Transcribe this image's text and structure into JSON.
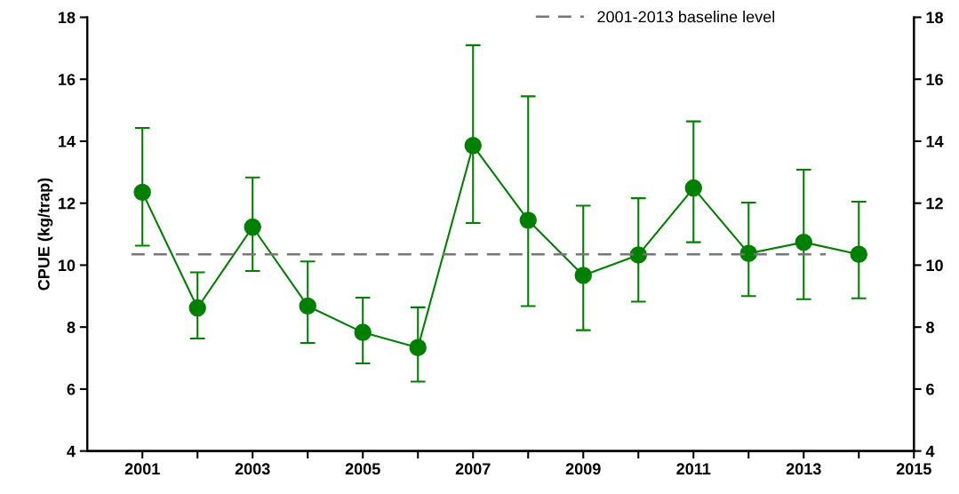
{
  "chart_data": {
    "type": "line",
    "ylabel": "CPUE (kg/trap)",
    "xlim": [
      2000,
      2015
    ],
    "xticks": [
      2001,
      {
        "value": 2002,
        "label": null
      },
      2003,
      {
        "value": 2004,
        "label": null
      },
      2005,
      {
        "value": 2006,
        "label": null
      },
      2007,
      {
        "value": 2008,
        "label": null
      },
      2009,
      {
        "value": 2010,
        "label": null
      },
      2011,
      {
        "value": 2012,
        "label": null
      },
      2013,
      {
        "value": 2014,
        "label": null
      },
      2015
    ],
    "ylim": [
      4,
      18
    ],
    "yticks": [
      4,
      6,
      8,
      10,
      12,
      14,
      16,
      18
    ],
    "y2lim": [
      4,
      18
    ],
    "y2ticks": [
      4,
      6,
      8,
      10,
      12,
      14,
      16,
      18
    ],
    "grid": false,
    "legend": "top right",
    "series": [
      {
        "color": "#008000",
        "marker": "circle",
        "line_style": "solid",
        "x": [
          2001,
          2002,
          2003,
          2004,
          2005,
          2006,
          2007,
          2008,
          2009,
          2010,
          2011,
          2012,
          2013,
          2014
        ],
        "values": [
          12.35,
          8.62,
          11.23,
          8.68,
          7.83,
          7.34,
          13.86,
          11.45,
          9.67,
          10.33,
          12.49,
          10.38,
          10.74,
          10.35
        ],
        "errors": [
          [
            10.63,
            14.43
          ],
          [
            7.63,
            9.77
          ],
          [
            9.81,
            12.83
          ],
          [
            7.49,
            10.12
          ],
          [
            6.83,
            8.95
          ],
          [
            6.24,
            8.64
          ],
          [
            11.36,
            17.1
          ],
          [
            8.68,
            15.45
          ],
          [
            7.9,
            11.92
          ],
          [
            8.82,
            12.16
          ],
          [
            10.74,
            14.64
          ],
          [
            9.0,
            12.02
          ],
          [
            8.9,
            13.08
          ],
          [
            8.93,
            12.05
          ]
        ]
      },
      {
        "name": "2001-2013 baseline level",
        "color": "#777777",
        "marker": "none",
        "line_style": "dashed",
        "x": [
          2000.8,
          2013.4
        ],
        "values": [
          10.35,
          10.35
        ]
      }
    ]
  }
}
